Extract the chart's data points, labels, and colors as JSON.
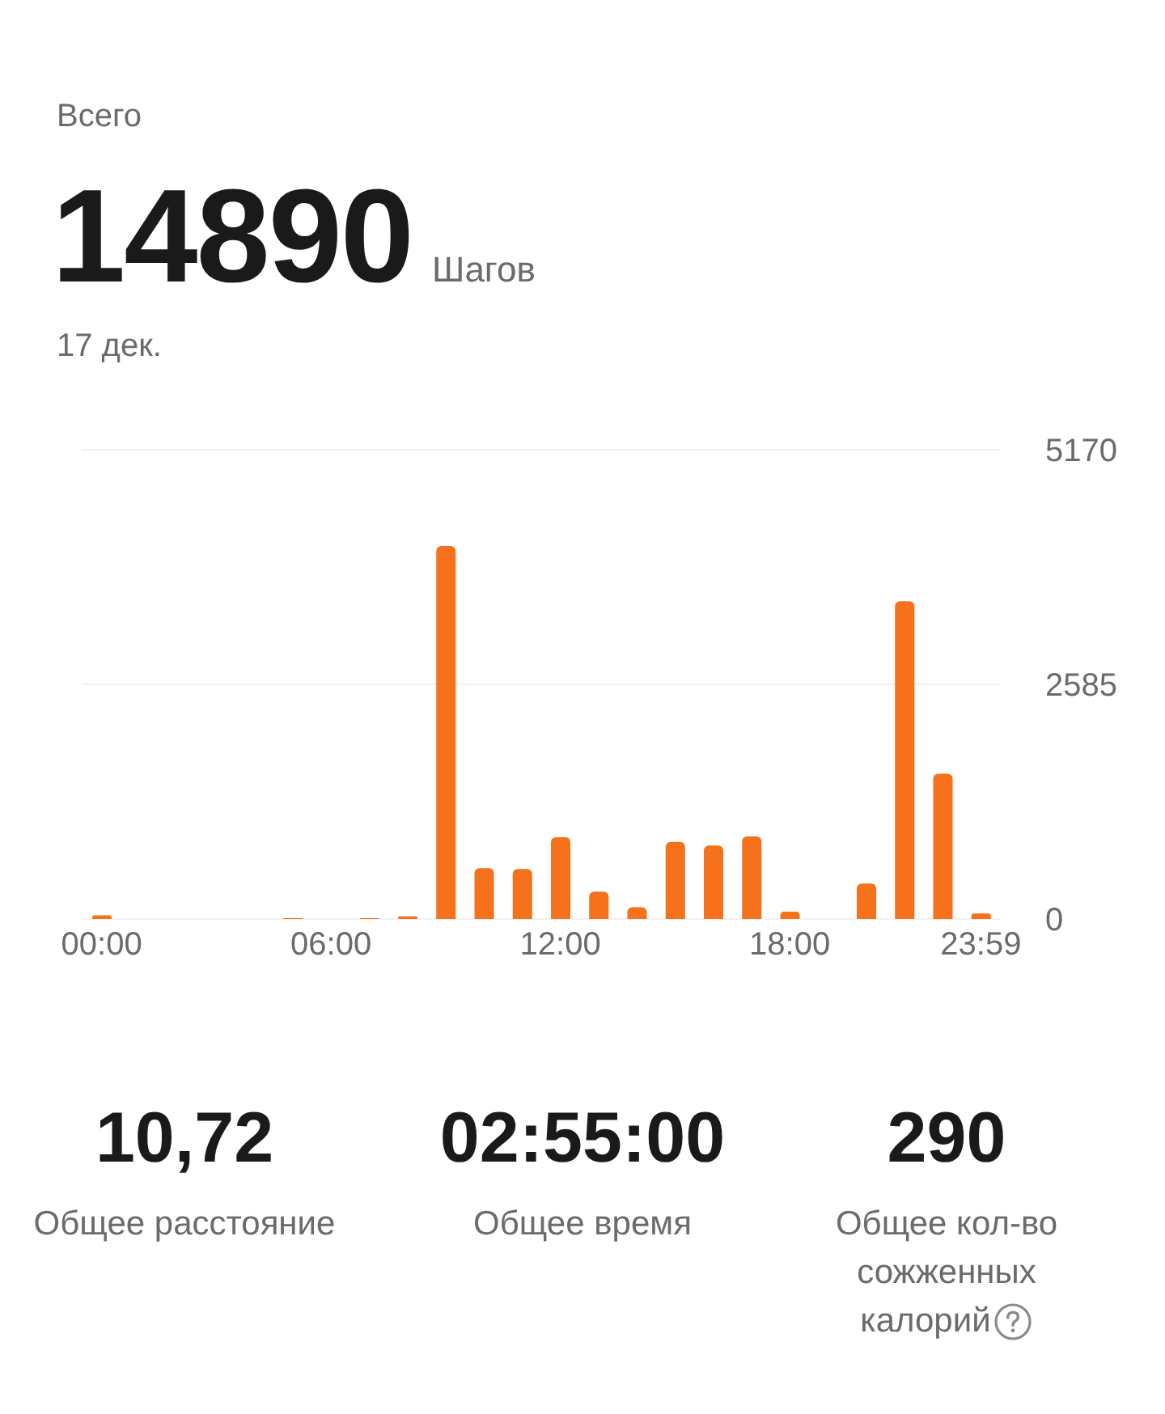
{
  "chart_data": {
    "type": "bar",
    "title": "14890",
    "subtitle": "Всего",
    "annotations": [
      "Шагов",
      "17 дек.",
      "10,72",
      "Общее расстояние",
      "02:55:00",
      "Общее время",
      "290",
      "Общее кол-во сожженных калорий"
    ],
    "categories": [
      "00:00",
      null,
      null,
      null,
      null,
      null,
      "06:00",
      null,
      null,
      null,
      null,
      null,
      "12:00",
      null,
      null,
      null,
      null,
      null,
      "18:00",
      null,
      null,
      null,
      null,
      "23:59"
    ],
    "values": [
      40,
      0,
      0,
      0,
      0,
      10,
      0,
      10,
      30,
      4110,
      560,
      550,
      900,
      300,
      130,
      850,
      810,
      910,
      80,
      0,
      390,
      3500,
      1600,
      60
    ],
    "color": "#f5711b",
    "ylim": [
      0,
      5170
    ],
    "yticks": [
      0,
      2585,
      5170
    ],
    "grid": "y"
  }
}
